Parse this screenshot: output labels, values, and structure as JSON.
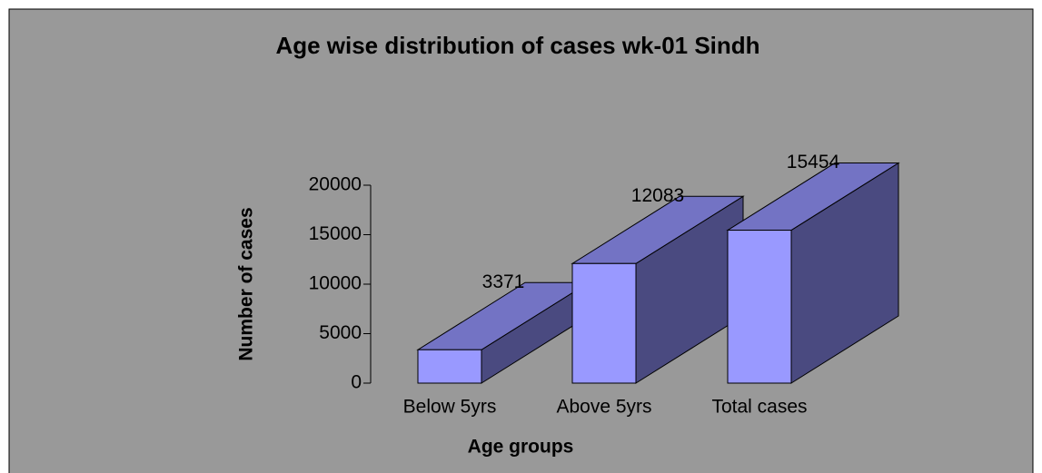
{
  "chart_data": {
    "type": "bar3d",
    "title": "Age wise distribution of cases wk-01 Sindh",
    "x_label": "Age groups",
    "y_label": "Number of cases",
    "categories": [
      "Below 5yrs",
      "Above 5yrs",
      "Total cases"
    ],
    "values": [
      3371,
      12083,
      15454
    ],
    "color": "#9999ff",
    "ylim": [
      0,
      20000
    ],
    "yticks": [
      0,
      5000,
      10000,
      15000,
      20000
    ]
  }
}
